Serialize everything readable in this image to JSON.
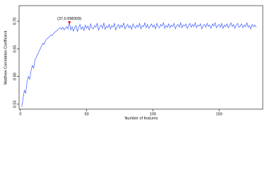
{
  "chart_data": {
    "type": "line",
    "xlabel": "Number of features",
    "ylabel": "Matthew Correlation Coefficient",
    "xlim": [
      -1,
      183
    ],
    "ylim": [
      0.541,
      0.728
    ],
    "xticks": [
      0,
      50,
      100,
      150
    ],
    "yticks": [
      0.55,
      {
        "value": 0.6,
        "label": "0.60"
      },
      0.65,
      {
        "value": 0.7,
        "label": "0.70"
      }
    ],
    "x": [
      1,
      2,
      3,
      4,
      5,
      6,
      7,
      8,
      9,
      10,
      11,
      12,
      13,
      14,
      15,
      16,
      17,
      18,
      19,
      20,
      21,
      22,
      23,
      24,
      25,
      26,
      27,
      28,
      29,
      30,
      31,
      32,
      33,
      34,
      35,
      36,
      37,
      38,
      39,
      40,
      41,
      42,
      43,
      44,
      45,
      46,
      47,
      48,
      49,
      50,
      51,
      52,
      53,
      54,
      55,
      56,
      57,
      58,
      59,
      60,
      61,
      62,
      63,
      64,
      65,
      66,
      67,
      68,
      69,
      70,
      71,
      72,
      73,
      74,
      75,
      76,
      77,
      78,
      79,
      80,
      81,
      82,
      83,
      84,
      85,
      86,
      87,
      88,
      89,
      90,
      91,
      92,
      93,
      94,
      95,
      96,
      97,
      98,
      99,
      100,
      101,
      102,
      103,
      104,
      105,
      106,
      107,
      108,
      109,
      110,
      111,
      112,
      113,
      114,
      115,
      116,
      117,
      118,
      119,
      120,
      121,
      122,
      123,
      124,
      125,
      126,
      127,
      128,
      129,
      130,
      131,
      132,
      133,
      134,
      135,
      136,
      137,
      138,
      139,
      140,
      141,
      142,
      143,
      144,
      145,
      146,
      147,
      148,
      149,
      150,
      151,
      152,
      153,
      154,
      155,
      156,
      157,
      158,
      159,
      160,
      161,
      162,
      163,
      164,
      165,
      166,
      167,
      168,
      169,
      170,
      171,
      172,
      173,
      174,
      175,
      176,
      177,
      178
    ],
    "series": [
      {
        "color": "#3b5bff",
        "values": [
          0.545,
          0.56,
          0.575,
          0.57,
          0.59,
          0.6,
          0.595,
          0.61,
          0.62,
          0.615,
          0.63,
          0.635,
          0.64,
          0.645,
          0.65,
          0.655,
          0.66,
          0.658,
          0.665,
          0.668,
          0.67,
          0.672,
          0.675,
          0.674,
          0.678,
          0.68,
          0.682,
          0.684,
          0.686,
          0.688,
          0.685,
          0.689,
          0.684,
          0.687,
          0.69,
          0.686,
          0.698309,
          0.684,
          0.69,
          0.682,
          0.688,
          0.692,
          0.681,
          0.689,
          0.694,
          0.685,
          0.69,
          0.683,
          0.693,
          0.687,
          0.691,
          0.684,
          0.695,
          0.688,
          0.686,
          0.692,
          0.689,
          0.696,
          0.684,
          0.69,
          0.693,
          0.687,
          0.697,
          0.685,
          0.691,
          0.688,
          0.694,
          0.686,
          0.692,
          0.689,
          0.696,
          0.684,
          0.69,
          0.694,
          0.687,
          0.693,
          0.689,
          0.697,
          0.686,
          0.691,
          0.694,
          0.688,
          0.692,
          0.685,
          0.695,
          0.69,
          0.687,
          0.693,
          0.689,
          0.696,
          0.686,
          0.692,
          0.69,
          0.697,
          0.688,
          0.694,
          0.687,
          0.691,
          0.695,
          0.689,
          0.693,
          0.686,
          0.696,
          0.69,
          0.688,
          0.694,
          0.691,
          0.697,
          0.687,
          0.692,
          0.689,
          0.695,
          0.688,
          0.693,
          0.69,
          0.696,
          0.686,
          0.692,
          0.694,
          0.689,
          0.697,
          0.688,
          0.693,
          0.691,
          0.695,
          0.687,
          0.692,
          0.696,
          0.689,
          0.694,
          0.69,
          0.697,
          0.688,
          0.693,
          0.691,
          0.695,
          0.686,
          0.692,
          0.694,
          0.689,
          0.696,
          0.69,
          0.693,
          0.687,
          0.695,
          0.691,
          0.697,
          0.688,
          0.692,
          0.694,
          0.689,
          0.696,
          0.687,
          0.693,
          0.69,
          0.695,
          0.688,
          0.692,
          0.697,
          0.69,
          0.694,
          0.687,
          0.693,
          0.696,
          0.689,
          0.691,
          0.695,
          0.688,
          0.693,
          0.69,
          0.697,
          0.689,
          0.692,
          0.686,
          0.694,
          0.69,
          0.693,
          0.689
        ]
      }
    ],
    "highlight": {
      "label": "(37,0.698309)",
      "x": 37,
      "y": 0.698309,
      "color": "#ff0000"
    }
  }
}
